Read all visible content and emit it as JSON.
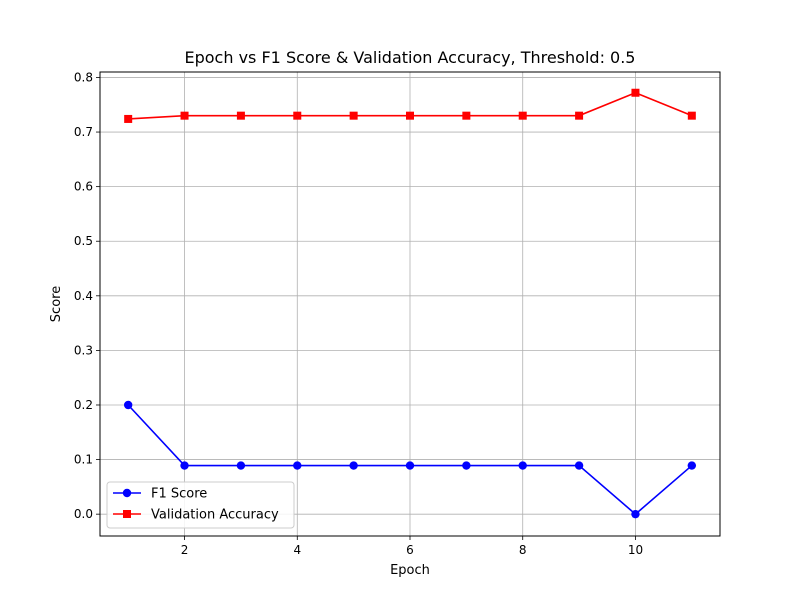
{
  "chart_data": {
    "type": "line",
    "title": "Epoch vs F1 Score & Validation Accuracy, Threshold: 0.5",
    "xlabel": "Epoch",
    "ylabel": "Score",
    "xlim": [
      0.5,
      11.5
    ],
    "ylim": [
      -0.04,
      0.81
    ],
    "xticks": [
      2,
      4,
      6,
      8,
      10
    ],
    "yticks": [
      0.0,
      0.1,
      0.2,
      0.3,
      0.4,
      0.5,
      0.6,
      0.7,
      0.8
    ],
    "grid": true,
    "legend_position": "lower-left",
    "x": [
      1,
      2,
      3,
      4,
      5,
      6,
      7,
      8,
      9,
      10,
      11
    ],
    "series": [
      {
        "name": "F1 Score",
        "color": "#0000ff",
        "marker": "circle",
        "values": [
          0.2,
          0.089,
          0.089,
          0.089,
          0.089,
          0.089,
          0.089,
          0.089,
          0.089,
          0.0,
          0.089
        ]
      },
      {
        "name": "Validation Accuracy",
        "color": "#ff0000",
        "marker": "square",
        "values": [
          0.724,
          0.73,
          0.73,
          0.73,
          0.73,
          0.73,
          0.73,
          0.73,
          0.73,
          0.772,
          0.73
        ]
      }
    ]
  }
}
